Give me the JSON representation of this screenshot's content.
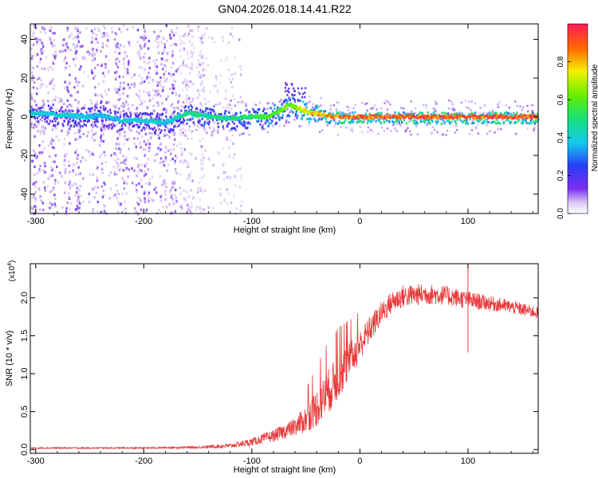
{
  "title": "GN04.2026.018.14.41.R22",
  "chart_data": [
    {
      "type": "heatmap",
      "xlabel": "Height of straight line (km)",
      "ylabel": "Frequency (Hz)",
      "xlim": [
        -305,
        165
      ],
      "ylim": [
        -50,
        48
      ],
      "xticks": [
        -300,
        -200,
        -100,
        0,
        100
      ],
      "xtick_labels": [
        "-300",
        "-200",
        "-100",
        "0",
        "100"
      ],
      "yticks": [
        -40,
        -20,
        0,
        20,
        40
      ],
      "ytick_labels": [
        "-40",
        "-20",
        "0",
        "20",
        "40"
      ],
      "colorbar": {
        "label": "Normalized spectral amplitude",
        "range": [
          0,
          1
        ],
        "ticks": [
          0.0,
          0.2,
          0.4,
          0.6,
          0.8
        ],
        "tick_labels": [
          "0.0",
          "0.2",
          "0.4",
          "0.6",
          "0.8"
        ],
        "colormap": "rainbow"
      },
      "ridge": {
        "x": [
          -305,
          -280,
          -250,
          -240,
          -220,
          -200,
          -180,
          -160,
          -140,
          -120,
          -100,
          -85,
          -75,
          -65,
          -55,
          -45,
          -35,
          -25,
          -15,
          0,
          20,
          40,
          60,
          80,
          100,
          120,
          140,
          165
        ],
        "y": [
          2,
          1,
          0,
          1,
          -2,
          -2,
          -3,
          2,
          0,
          -1,
          0,
          0,
          3,
          6,
          4,
          2,
          1,
          0,
          0,
          0,
          0,
          0,
          0,
          0,
          0,
          0,
          0,
          0
        ],
        "amplitude": [
          0.4,
          0.42,
          0.4,
          0.38,
          0.4,
          0.42,
          0.4,
          0.5,
          0.5,
          0.5,
          0.55,
          0.6,
          0.62,
          0.65,
          0.75,
          0.8,
          0.85,
          0.88,
          0.9,
          0.92,
          0.93,
          0.94,
          0.95,
          0.95,
          0.95,
          0.95,
          0.95,
          0.95
        ]
      },
      "noise_region_x": [
        -305,
        -130
      ]
    },
    {
      "type": "line",
      "xlabel": "Height of straight line (km)",
      "ylabel": "SNR (10 * v/v)",
      "y_multiplier": "(x10^4)",
      "xlim": [
        -305,
        165
      ],
      "ylim": [
        -0.05,
        2.45
      ],
      "xticks": [
        -300,
        -200,
        -100,
        0,
        100
      ],
      "xtick_labels": [
        "-300",
        "-200",
        "-100",
        "0",
        "100"
      ],
      "yticks": [
        0.0,
        0.5,
        1.0,
        1.5,
        2.0
      ],
      "ytick_labels": [
        "0.0",
        "0.5",
        "1.0",
        "1.5",
        "2.0"
      ],
      "series": [
        {
          "color": "#e8383a",
          "x": [
            -305,
            -250,
            -200,
            -150,
            -120,
            -100,
            -80,
            -60,
            -50,
            -40,
            -30,
            -20,
            -10,
            0,
            10,
            20,
            30,
            40,
            60,
            80,
            100,
            120,
            140,
            165
          ],
          "y": [
            0.02,
            0.02,
            0.02,
            0.03,
            0.05,
            0.1,
            0.18,
            0.3,
            0.4,
            0.55,
            0.75,
            0.95,
            1.15,
            1.38,
            1.6,
            1.8,
            1.95,
            2.02,
            2.05,
            2.03,
            1.97,
            1.93,
            1.88,
            1.8
          ],
          "noise_amplitude": [
            0.01,
            0.01,
            0.01,
            0.015,
            0.03,
            0.05,
            0.08,
            0.12,
            0.18,
            0.25,
            0.3,
            0.3,
            0.25,
            0.2,
            0.18,
            0.15,
            0.15,
            0.15,
            0.14,
            0.13,
            0.12,
            0.1,
            0.09,
            0.08
          ]
        }
      ],
      "annotations": [
        {
          "x": -22,
          "y": 1.55,
          "kind": "spike"
        },
        {
          "x": 100,
          "y": 2.45,
          "kind": "spike"
        },
        {
          "x": 100,
          "y": 1.28,
          "kind": "dip"
        }
      ]
    }
  ]
}
